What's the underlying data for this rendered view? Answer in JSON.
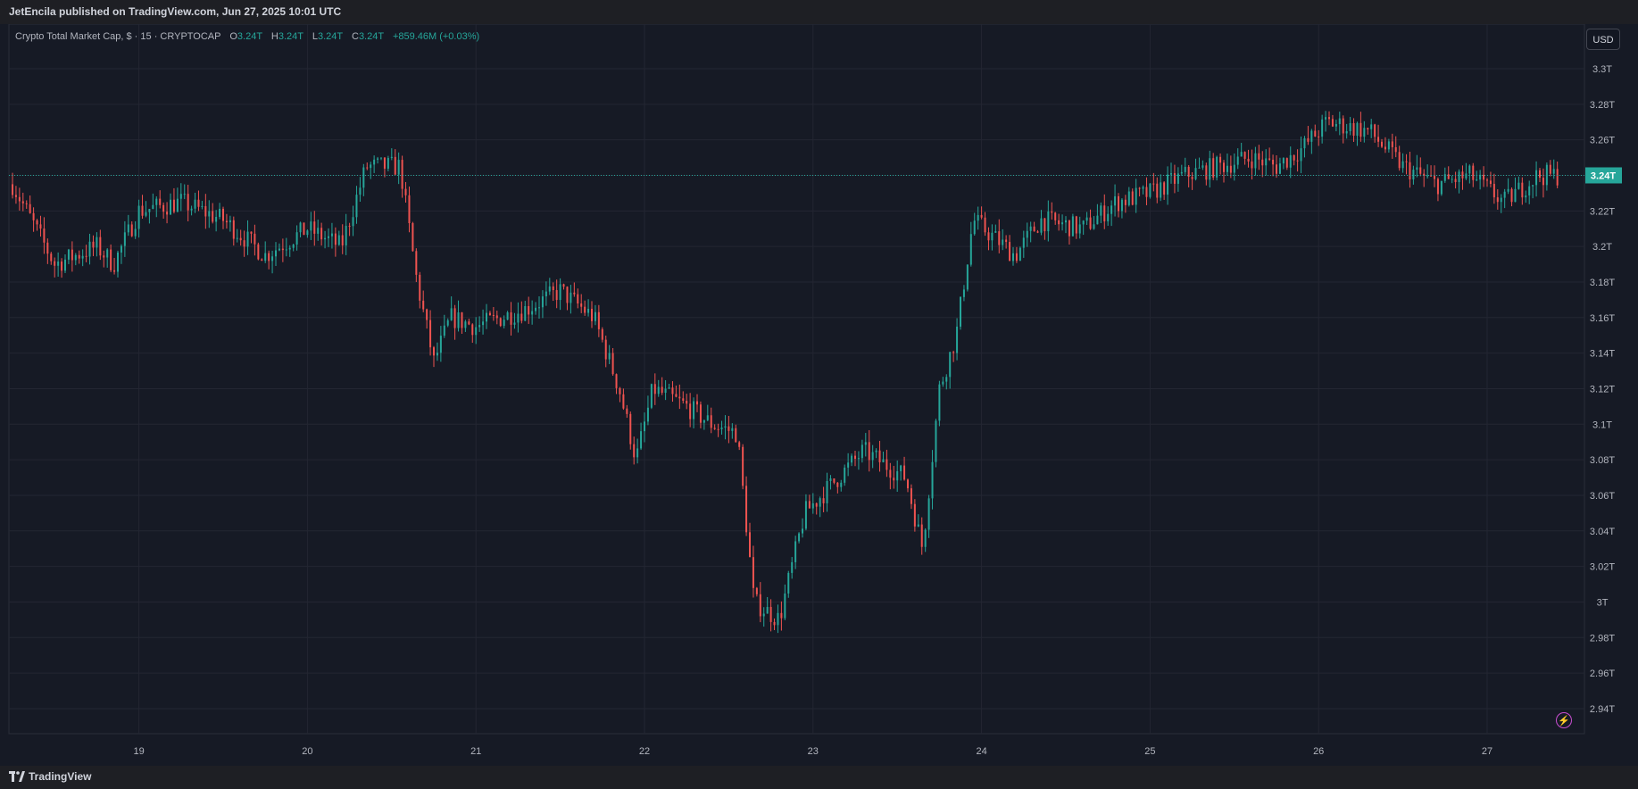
{
  "header": {
    "published": "JetEncila published on TradingView.com, Jun 27, 2025 10:01 UTC"
  },
  "legend": {
    "symbol": "Crypto Total Market Cap, $ · 15 · CRYPTOCAP",
    "o_label": "O",
    "o_value": "3.24T",
    "h_label": "H",
    "h_value": "3.24T",
    "l_label": "L",
    "l_value": "3.24T",
    "c_label": "C",
    "c_value": "3.24T",
    "change": "+859.46M (+0.03%)"
  },
  "currency_button": "USD",
  "footer": {
    "brand": "TradingView"
  },
  "icons": {
    "logo": "tradingview-logo-icon",
    "bolt": "lightning-icon"
  },
  "colors": {
    "up": "#26a69a",
    "down": "#ef5350",
    "background": "#161a25",
    "grid": "#232632",
    "price_label_bg": "#26a69a",
    "axis_text": "#b2b5be"
  },
  "chart_data": {
    "type": "candlestick",
    "title": "Crypto Total Market Cap, $ · 15 · CRYPTOCAP",
    "interval": "15",
    "unit": "T USD",
    "ylim": [
      2.93,
      3.31
    ],
    "y_ticks": [
      "3.3T",
      "3.28T",
      "3.26T",
      "3.24T",
      "3.22T",
      "3.2T",
      "3.18T",
      "3.16T",
      "3.14T",
      "3.12T",
      "3.1T",
      "3.08T",
      "3.06T",
      "3.04T",
      "3.02T",
      "3T",
      "2.98T",
      "2.96T",
      "2.94T"
    ],
    "x_ticks": [
      "19",
      "20",
      "21",
      "22",
      "23",
      "24",
      "25",
      "26",
      "27"
    ],
    "last_price_label": "3.24T",
    "last_price": 3.24,
    "grid": true,
    "price_path": [
      {
        "day": 18.25,
        "close": 3.235
      },
      {
        "day": 18.5,
        "close": 3.19
      },
      {
        "day": 18.75,
        "close": 3.2
      },
      {
        "day": 18.85,
        "close": 3.19
      },
      {
        "day": 19.0,
        "close": 3.22
      },
      {
        "day": 19.25,
        "close": 3.225
      },
      {
        "day": 19.5,
        "close": 3.215
      },
      {
        "day": 19.75,
        "close": 3.195
      },
      {
        "day": 20.0,
        "close": 3.21
      },
      {
        "day": 20.2,
        "close": 3.2
      },
      {
        "day": 20.35,
        "close": 3.245
      },
      {
        "day": 20.55,
        "close": 3.245
      },
      {
        "day": 20.65,
        "close": 3.18
      },
      {
        "day": 20.75,
        "close": 3.135
      },
      {
        "day": 20.85,
        "close": 3.16
      },
      {
        "day": 21.0,
        "close": 3.155
      },
      {
        "day": 21.3,
        "close": 3.165
      },
      {
        "day": 21.5,
        "close": 3.175
      },
      {
        "day": 21.7,
        "close": 3.16
      },
      {
        "day": 21.85,
        "close": 3.12
      },
      {
        "day": 21.95,
        "close": 3.08
      },
      {
        "day": 22.05,
        "close": 3.12
      },
      {
        "day": 22.25,
        "close": 3.11
      },
      {
        "day": 22.4,
        "close": 3.1
      },
      {
        "day": 22.55,
        "close": 3.095
      },
      {
        "day": 22.65,
        "close": 3.0
      },
      {
        "day": 22.8,
        "close": 2.99
      },
      {
        "day": 22.95,
        "close": 3.05
      },
      {
        "day": 23.1,
        "close": 3.065
      },
      {
        "day": 23.3,
        "close": 3.085
      },
      {
        "day": 23.55,
        "close": 3.07
      },
      {
        "day": 23.65,
        "close": 3.03
      },
      {
        "day": 23.75,
        "close": 3.12
      },
      {
        "day": 23.85,
        "close": 3.15
      },
      {
        "day": 23.95,
        "close": 3.215
      },
      {
        "day": 24.2,
        "close": 3.195
      },
      {
        "day": 24.35,
        "close": 3.215
      },
      {
        "day": 24.6,
        "close": 3.21
      },
      {
        "day": 24.8,
        "close": 3.225
      },
      {
        "day": 25.0,
        "close": 3.23
      },
      {
        "day": 25.2,
        "close": 3.24
      },
      {
        "day": 25.4,
        "close": 3.245
      },
      {
        "day": 25.6,
        "close": 3.25
      },
      {
        "day": 25.75,
        "close": 3.245
      },
      {
        "day": 25.9,
        "close": 3.255
      },
      {
        "day": 26.05,
        "close": 3.27
      },
      {
        "day": 26.3,
        "close": 3.265
      },
      {
        "day": 26.5,
        "close": 3.245
      },
      {
        "day": 26.7,
        "close": 3.235
      },
      {
        "day": 26.9,
        "close": 3.24
      },
      {
        "day": 27.1,
        "close": 3.225
      },
      {
        "day": 27.3,
        "close": 3.24
      },
      {
        "day": 27.42,
        "close": 3.24
      }
    ]
  }
}
